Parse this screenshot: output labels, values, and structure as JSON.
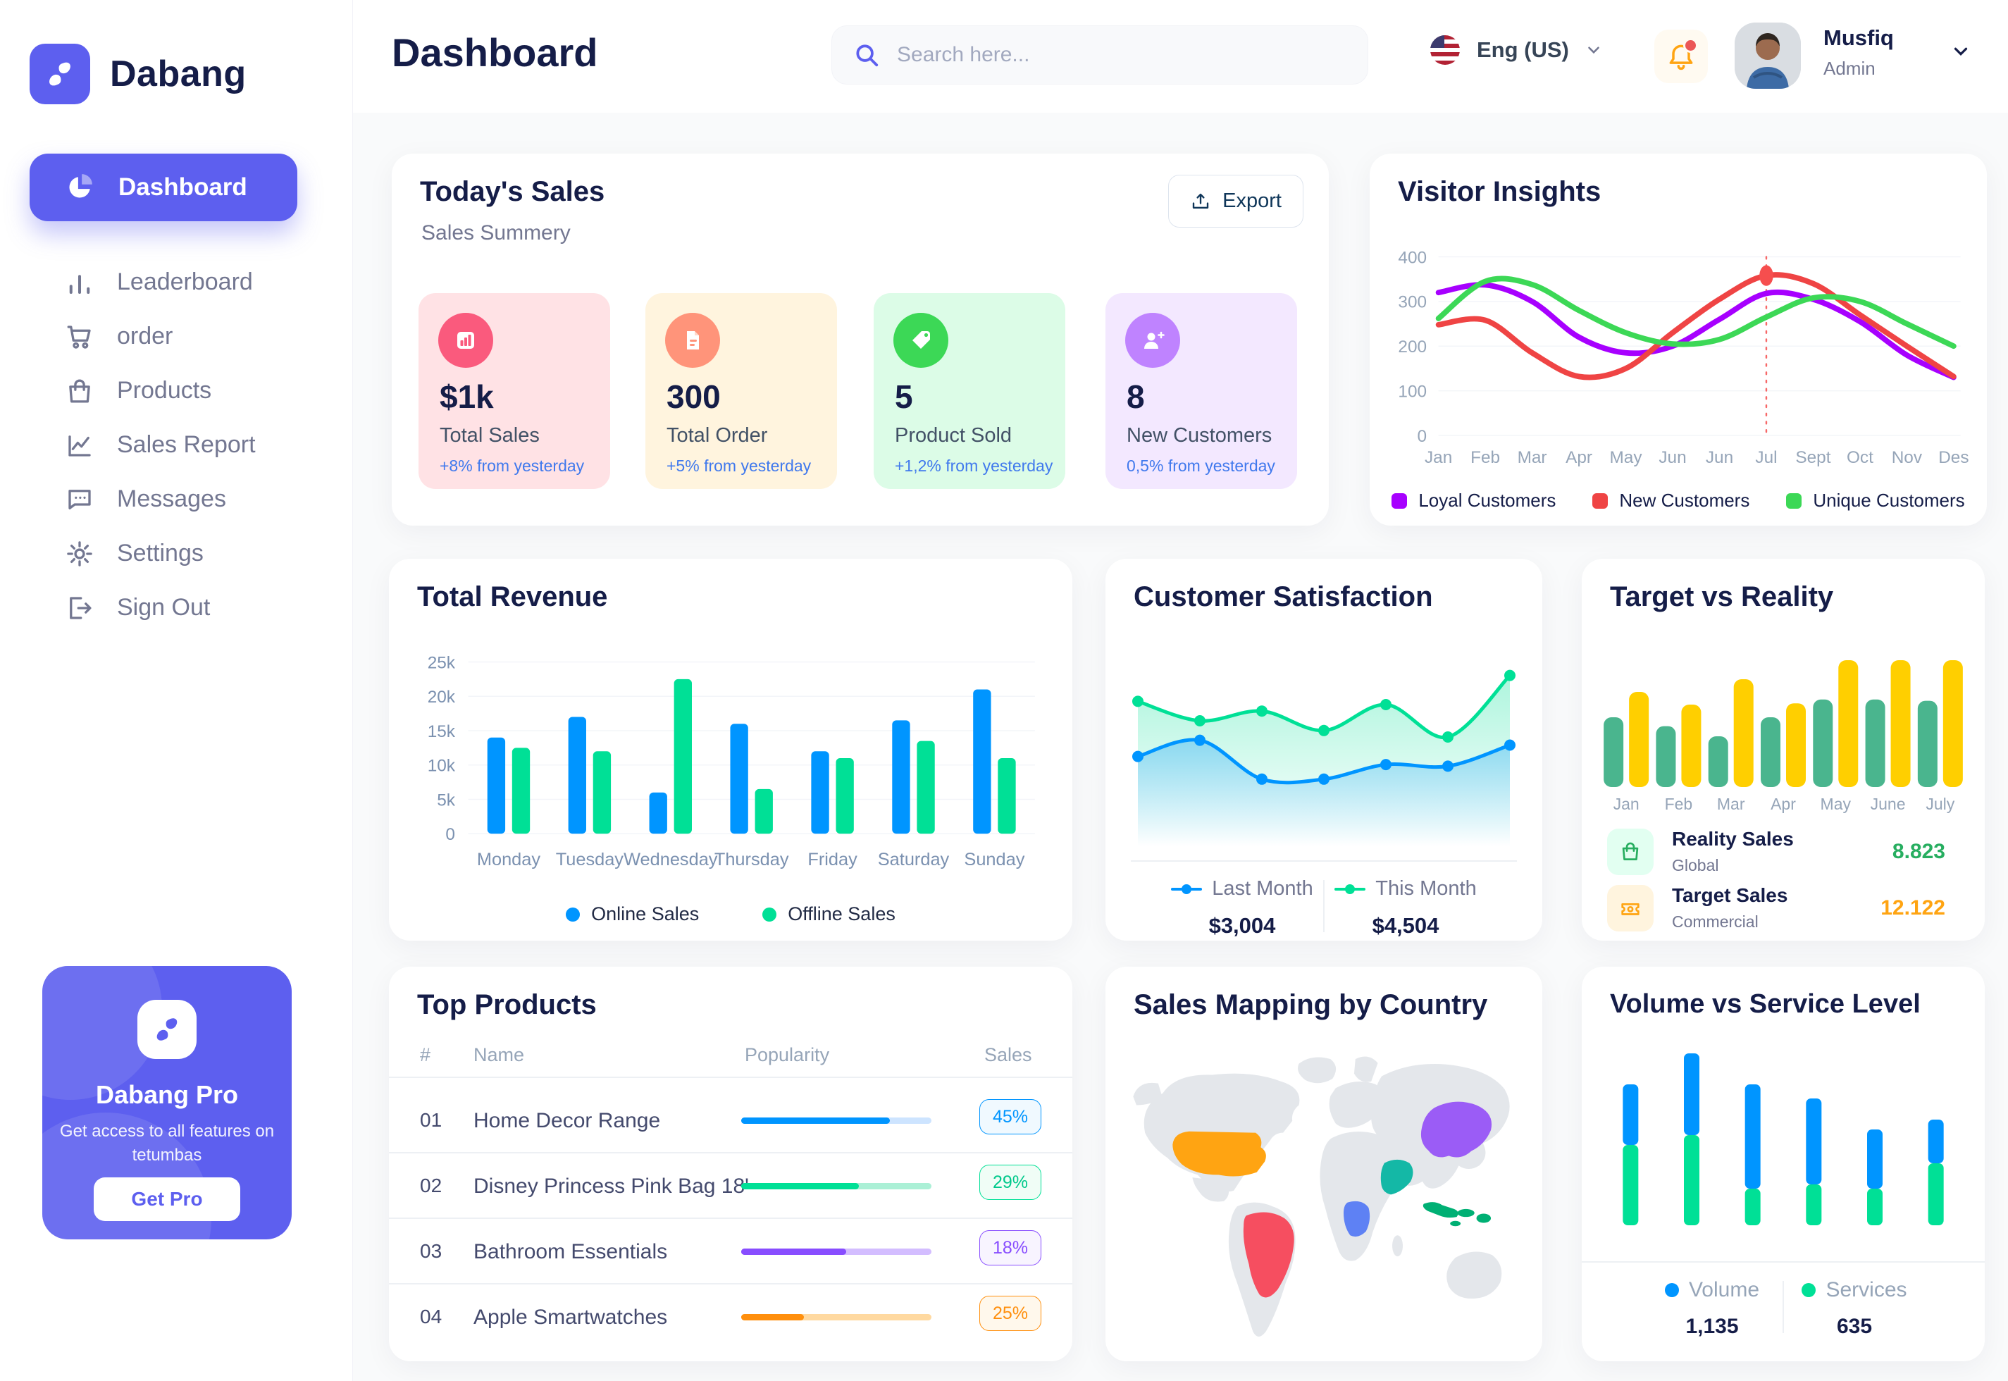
{
  "app": {
    "brand": "Dabang",
    "page_title": "Dashboard"
  },
  "theme": {
    "accent": "#5D5FEF",
    "title_color": "#151D48",
    "muted_color": "#737791",
    "axis_color": "#96A5B8",
    "delta_blue": "#4079ED"
  },
  "header": {
    "search": {
      "placeholder": "Search here..."
    },
    "language": {
      "label": "Eng (US)",
      "flag": "us-flag"
    },
    "user": {
      "name": "Musfiq",
      "role": "Admin"
    }
  },
  "sidebar": {
    "items": [
      {
        "label": "Dashboard",
        "active": true
      },
      {
        "label": "Leaderboard"
      },
      {
        "label": "order"
      },
      {
        "label": "Products"
      },
      {
        "label": "Sales Report"
      },
      {
        "label": "Messages"
      },
      {
        "label": "Settings"
      },
      {
        "label": "Sign Out"
      }
    ],
    "pro_card": {
      "title": "Dabang Pro",
      "subtitle": "Get access to all features on tetumbas",
      "button": "Get Pro"
    }
  },
  "today_sales": {
    "title": "Today's Sales",
    "subtitle": "Sales Summery",
    "export_label": "Export",
    "cards": [
      {
        "value": "$1k",
        "label": "Total Sales",
        "delta": "+8% from yesterday",
        "bg": "#FFE2E5",
        "circle": "#FA5A7D",
        "icon": "bar-chart-icon"
      },
      {
        "value": "300",
        "label": "Total Order",
        "delta": "+5% from yesterday",
        "bg": "#FFF4DE",
        "circle": "#FF947A",
        "icon": "order-file-icon"
      },
      {
        "value": "5",
        "label": "Product Sold",
        "delta": "+1,2% from yesterday",
        "bg": "#DCFCE7",
        "circle": "#3CD856",
        "icon": "tag-icon"
      },
      {
        "value": "8",
        "label": "New Customers",
        "delta": "0,5% from yesterday",
        "bg": "#F3E8FF",
        "circle": "#BF83FF",
        "icon": "user-plus-icon"
      }
    ]
  },
  "chart_data": [
    {
      "id": "visitor_insights",
      "type": "line",
      "title": "Visitor Insights",
      "categories": [
        "Jan",
        "Feb",
        "Mar",
        "Apr",
        "May",
        "Jun",
        "Jun",
        "Jul",
        "Sept",
        "Oct",
        "Nov",
        "Des"
      ],
      "ylim": [
        0,
        400
      ],
      "yticks": [
        0,
        100,
        200,
        300,
        400
      ],
      "grid": true,
      "legend_position": "bottom",
      "series": [
        {
          "name": "Loyal Customers",
          "color": "#A700FF",
          "values": [
            320,
            337,
            300,
            220,
            185,
            200,
            260,
            318,
            305,
            255,
            180,
            130
          ]
        },
        {
          "name": "New Customers",
          "color": "#EF4444",
          "values": [
            248,
            258,
            185,
            132,
            150,
            230,
            305,
            358,
            340,
            270,
            200,
            132
          ]
        },
        {
          "name": "Unique Customers",
          "color": "#3CD856",
          "values": [
            262,
            345,
            338,
            280,
            230,
            205,
            215,
            265,
            308,
            300,
            250,
            200
          ]
        }
      ],
      "marker": {
        "series": "New Customers",
        "index": 7,
        "value": 358,
        "color": "#F64E4E",
        "style": "vertical-dashed-line"
      }
    },
    {
      "id": "total_revenue",
      "type": "bar",
      "title": "Total Revenue",
      "categories": [
        "Monday",
        "Tuesday",
        "Wednesday",
        "Thursday",
        "Friday",
        "Saturday",
        "Sunday"
      ],
      "ymax": 25000,
      "yticks": [
        {
          "v": 0,
          "label": "0"
        },
        {
          "v": 5000,
          "label": "5k"
        },
        {
          "v": 10000,
          "label": "10k"
        },
        {
          "v": 15000,
          "label": "15k"
        },
        {
          "v": 20000,
          "label": "20k"
        },
        {
          "v": 25000,
          "label": "25k"
        }
      ],
      "grid": true,
      "legend_position": "bottom",
      "series": [
        {
          "name": "Online Sales",
          "color": "#0095FF",
          "values": [
            14000,
            17000,
            6000,
            16000,
            12000,
            16500,
            21000
          ]
        },
        {
          "name": "Offline Sales",
          "color": "#00E096",
          "values": [
            12500,
            12000,
            22500,
            6500,
            11000,
            13500,
            11000
          ]
        }
      ]
    },
    {
      "id": "customer_satisfaction",
      "type": "area",
      "title": "Customer Satisfaction",
      "x": [
        1,
        2,
        3,
        4,
        5,
        6,
        7
      ],
      "ylim": [
        0,
        100
      ],
      "grid": false,
      "legend_position": "bottom",
      "series": [
        {
          "name": "This Month",
          "color": "#00E096",
          "values": [
            72,
            60,
            66,
            54,
            70,
            50,
            88
          ],
          "total": "$4,504"
        },
        {
          "name": "Last Month",
          "color": "#0095FF",
          "values": [
            38,
            48,
            24,
            24,
            33,
            32,
            45
          ],
          "total": "$3,004"
        }
      ]
    },
    {
      "id": "target_vs_reality",
      "type": "bar",
      "title": "Target vs Reality",
      "categories": [
        "Jan",
        "Feb",
        "Mar",
        "Apr",
        "May",
        "June",
        "July"
      ],
      "ylim": [
        0,
        100
      ],
      "grid": false,
      "series": [
        {
          "name": "Reality Sales",
          "color": "#4AB58E",
          "values": [
            55,
            48,
            40,
            55,
            69,
            69,
            68
          ]
        },
        {
          "name": "Target Sales",
          "color": "#FFCF00",
          "values": [
            75,
            65,
            85,
            66,
            100,
            100,
            100
          ]
        }
      ],
      "legend": [
        {
          "label": "Reality Sales",
          "sub": "Global",
          "value": "8.823",
          "value_color": "#27AE60",
          "icon": "bag-icon"
        },
        {
          "label": "Target Sales",
          "sub": "Commercial",
          "value": "12.122",
          "value_color": "#FFA412",
          "icon": "ticket-icon"
        }
      ]
    },
    {
      "id": "volume_vs_service",
      "type": "bar",
      "subtype": "stacked",
      "title": "Volume vs Service Level",
      "categories": [
        "1",
        "2",
        "3",
        "4",
        "5",
        "6"
      ],
      "grid": false,
      "legend_position": "bottom",
      "series": [
        {
          "name": "Volume",
          "color": "#0095FF",
          "values": [
            43,
            58,
            74,
            61,
            42,
            31
          ],
          "total": "1,135"
        },
        {
          "name": "Services",
          "color": "#00E096",
          "values": [
            57,
            64,
            26,
            29,
            26,
            44
          ],
          "total": "635"
        }
      ]
    }
  ],
  "top_products": {
    "title": "Top Products",
    "headers": [
      "#",
      "Name",
      "Popularity",
      "Sales"
    ],
    "rows": [
      {
        "num": "01",
        "name": "Home Decor Range",
        "popularity": 78,
        "sales": "45%",
        "color": "blue"
      },
      {
        "num": "02",
        "name": "Disney Princess Pink Bag 18'",
        "popularity": 62,
        "sales": "29%",
        "color": "green"
      },
      {
        "num": "03",
        "name": "Bathroom Essentials",
        "popularity": 55,
        "sales": "18%",
        "color": "purple"
      },
      {
        "num": "04",
        "name": "Apple Smartwatches",
        "popularity": 33,
        "sales": "25%",
        "color": "orange"
      }
    ]
  },
  "sales_map": {
    "title": "Sales Mapping by Country",
    "countries": [
      {
        "name": "United States",
        "color": "#FFA412"
      },
      {
        "name": "Brazil",
        "color": "#F64E60"
      },
      {
        "name": "DR Congo",
        "color": "#5E81F4"
      },
      {
        "name": "Saudi Arabia",
        "color": "#14B8A6"
      },
      {
        "name": "China",
        "color": "#9B5CF6"
      },
      {
        "name": "Indonesia",
        "color": "#00B074"
      }
    ]
  }
}
